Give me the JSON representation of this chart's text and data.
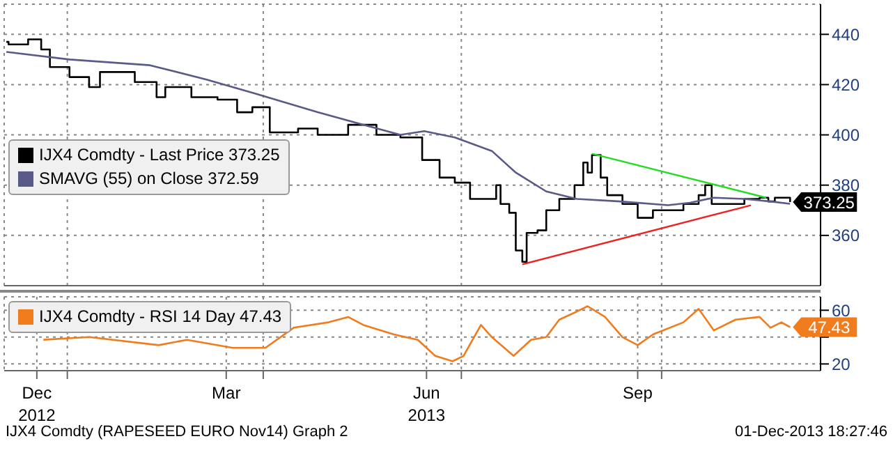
{
  "chart_data": [
    {
      "type": "step",
      "legend": "left",
      "grid": true,
      "tick_labels": "y",
      "xlim": [
        "2012-12-03",
        "2013-12-13"
      ],
      "xticks": [
        {
          "value": "2013-01-01",
          "label": null
        },
        {
          "value": "2013-04-01",
          "label": null
        },
        {
          "value": "2013-07-01",
          "label": null
        },
        {
          "value": "2013-10-01",
          "label": null
        }
      ],
      "ylim": [
        340,
        452
      ],
      "yticks": [
        360,
        380,
        400,
        420,
        440
      ],
      "series": [
        {
          "name": "IJX4 Comdty - Last Price 373.25",
          "color": "#000000",
          "x": [
            "2012-12-04",
            "2012-12-05",
            "2012-12-14",
            "2012-12-20",
            "2012-12-24",
            "2013-01-02",
            "2013-01-11",
            "2013-01-16",
            "2013-02-01",
            "2013-02-11",
            "2013-02-15",
            "2013-02-27",
            "2013-03-11",
            "2013-03-20",
            "2013-03-27",
            "2013-04-04",
            "2013-04-17",
            "2013-04-26",
            "2013-05-10",
            "2013-05-23",
            "2013-06-03",
            "2013-06-13",
            "2013-06-21",
            "2013-06-28",
            "2013-07-05",
            "2013-07-17",
            "2013-07-19",
            "2013-07-23",
            "2013-07-26",
            "2013-07-29",
            "2013-07-31",
            "2013-08-05",
            "2013-08-09",
            "2013-08-15",
            "2013-08-22",
            "2013-08-26",
            "2013-08-28",
            "2013-08-30",
            "2013-09-03",
            "2013-09-06",
            "2013-09-13",
            "2013-09-20",
            "2013-09-24",
            "2013-09-27",
            "2013-10-04",
            "2013-10-11",
            "2013-10-18",
            "2013-10-21",
            "2013-10-24",
            "2013-11-01",
            "2013-11-08",
            "2013-11-15",
            "2013-11-19",
            "2013-11-22",
            "2013-11-29"
          ],
          "values": [
            437,
            436,
            438,
            434,
            427,
            423,
            419,
            425,
            421,
            415,
            419,
            415,
            414,
            409,
            411,
            401,
            402.5,
            400,
            404,
            400,
            399,
            390,
            383,
            381,
            374.5,
            380,
            372.5,
            369,
            354,
            349.5,
            361,
            362,
            370,
            374.5,
            380,
            389,
            385,
            392,
            383,
            376,
            372.5,
            367,
            367,
            370,
            370,
            372.5,
            376,
            380,
            372.5,
            372.5,
            374.5,
            375,
            373.5,
            375,
            373.25
          ],
          "value_labels": [
            null,
            null,
            null,
            null,
            null,
            null,
            null,
            null,
            null,
            null,
            null,
            null,
            null,
            null,
            null,
            null,
            null,
            null,
            null,
            null,
            null,
            null,
            null,
            null,
            null,
            null,
            null,
            null,
            null,
            null,
            null,
            null,
            null,
            null,
            null,
            null,
            null,
            null,
            null,
            null,
            null,
            null,
            null,
            null,
            null,
            null,
            null,
            null,
            null,
            null,
            null,
            null,
            null,
            null,
            "373.25"
          ]
        },
        {
          "name": "SMAVG (55) on Close 372.59",
          "type": "line",
          "color": "#5a5a88",
          "x": [
            "2012-12-04",
            "2013-01-02",
            "2013-02-08",
            "2013-03-06",
            "2013-03-28",
            "2013-04-26",
            "2013-06-03",
            "2013-06-14",
            "2013-06-28",
            "2013-07-15",
            "2013-07-26",
            "2013-08-09",
            "2013-08-23",
            "2013-09-12",
            "2013-10-04",
            "2013-10-14",
            "2013-10-25",
            "2013-11-08",
            "2013-11-20",
            "2013-11-29"
          ],
          "values": [
            433,
            430,
            427.7,
            422,
            416.5,
            409,
            400,
            401.5,
            399,
            393.6,
            385,
            377.5,
            374.5,
            373.5,
            372,
            373,
            375,
            374.5,
            373.5,
            372.59
          ]
        },
        {
          "type": "line",
          "color": "#22dd22",
          "x": [
            "2013-08-30",
            "2013-11-18"
          ],
          "values": [
            392.5,
            375
          ]
        },
        {
          "type": "line",
          "color": "#ee2222",
          "x": [
            "2013-07-29",
            "2013-11-11"
          ],
          "values": [
            348.5,
            372
          ]
        }
      ]
    },
    {
      "type": "line",
      "legend": "top left",
      "grid": true,
      "xlim": [
        "2012-12-03",
        "2013-12-13"
      ],
      "xticks": [
        {
          "value": "2012-12-18",
          "label": "Dec\n2012"
        },
        {
          "value": "2013-01-01",
          "label": null
        },
        {
          "value": "2013-03-15",
          "label": "Mar"
        },
        {
          "value": "2013-04-01",
          "label": null
        },
        {
          "value": "2013-06-15",
          "label": "Jun\n2013"
        },
        {
          "value": "2013-07-01",
          "label": null
        },
        {
          "value": "2013-09-20",
          "label": "Sep"
        },
        {
          "value": "2013-10-01",
          "label": null
        }
      ],
      "ylim": [
        15,
        70
      ],
      "yticks": [
        20,
        {
          "value": 40,
          "label": null
        },
        60
      ],
      "annotations": [
        "IJX4 Comdty (RAPESEED  EURO    Nov14) Graph 2",
        "01-Dec-2013 18:27:46"
      ],
      "series": [
        {
          "name": "IJX4 Comdty - RSI 14 Day 47.43",
          "color": "#f07c1e",
          "x": [
            "2012-12-21",
            "2013-01-11",
            "2013-02-12",
            "2013-02-25",
            "2013-03-18",
            "2013-04-02",
            "2013-04-15",
            "2013-05-01",
            "2013-05-10",
            "2013-05-17",
            "2013-05-31",
            "2013-06-11",
            "2013-06-19",
            "2013-06-27",
            "2013-07-02",
            "2013-07-10",
            "2013-07-15",
            "2013-07-25",
            "2013-08-02",
            "2013-08-09",
            "2013-08-15",
            "2013-08-23",
            "2013-08-28",
            "2013-09-05",
            "2013-09-13",
            "2013-09-20",
            "2013-09-27",
            "2013-10-11",
            "2013-10-18",
            "2013-10-25",
            "2013-11-04",
            "2013-11-15",
            "2013-11-20",
            "2013-11-25",
            "2013-11-29"
          ],
          "values": [
            38,
            40,
            34,
            38,
            32,
            32,
            47,
            51,
            55,
            49,
            42,
            38,
            26,
            22,
            26,
            49,
            40,
            26,
            38,
            40,
            53,
            59,
            63,
            55,
            40,
            34,
            42,
            51,
            61,
            45,
            53,
            55,
            47,
            51,
            47.43
          ],
          "value_labels": [
            null,
            null,
            null,
            null,
            null,
            null,
            null,
            null,
            null,
            null,
            null,
            null,
            null,
            null,
            null,
            null,
            null,
            null,
            null,
            null,
            null,
            null,
            null,
            null,
            null,
            null,
            null,
            null,
            null,
            null,
            null,
            null,
            null,
            null,
            "47.43"
          ]
        }
      ]
    }
  ]
}
